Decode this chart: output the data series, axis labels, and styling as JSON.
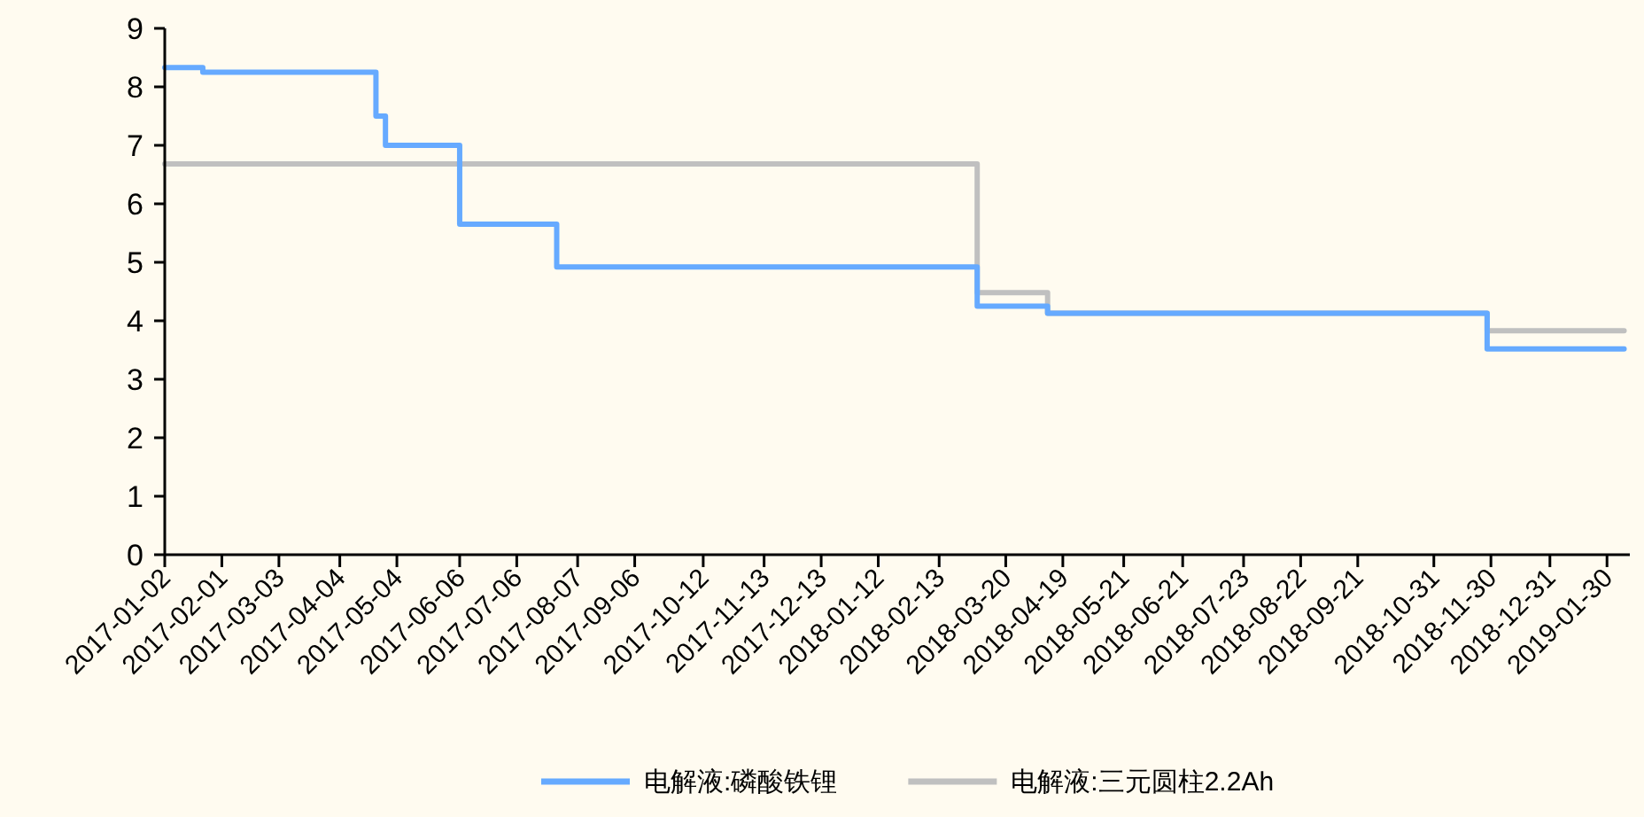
{
  "chart_data": {
    "type": "step",
    "ylim": [
      0,
      9
    ],
    "yticks": [
      0,
      1,
      2,
      3,
      4,
      5,
      6,
      7,
      8,
      9
    ],
    "xlim": [
      "2017-01-02",
      "2019-02-11"
    ],
    "xticks": [
      "2017-01-02",
      "2017-02-01",
      "2017-03-03",
      "2017-04-04",
      "2017-05-04",
      "2017-06-06",
      "2017-07-06",
      "2017-08-07",
      "2017-09-06",
      "2017-10-12",
      "2017-11-13",
      "2017-12-13",
      "2018-01-12",
      "2018-02-13",
      "2018-03-20",
      "2018-04-19",
      "2018-05-21",
      "2018-06-21",
      "2018-07-23",
      "2018-08-22",
      "2018-09-21",
      "2018-10-31",
      "2018-11-30",
      "2018-12-31",
      "2019-01-30"
    ],
    "grid": false,
    "legend": "bottom",
    "marker": "none",
    "line_style": "solid",
    "series": [
      {
        "name": "电解液:三元圆柱2.2Ah",
        "color": "#c0c0c0",
        "x": [
          "2017-01-02",
          "2018-03-05",
          "2018-04-11",
          "2018-11-28",
          "2019-02-08"
        ],
        "values": [
          6.68,
          4.48,
          4.13,
          3.83,
          3.83
        ]
      },
      {
        "name": "电解液:磷酸铁锂",
        "color": "#66aaff",
        "x": [
          "2017-01-02",
          "2017-01-22",
          "2017-04-23",
          "2017-04-26",
          "2017-04-28",
          "2017-06-06",
          "2017-07-27",
          "2018-03-05",
          "2018-04-11",
          "2018-11-28",
          "2019-02-08"
        ],
        "values": [
          8.33,
          8.25,
          7.5,
          7.5,
          7.0,
          5.65,
          4.92,
          4.25,
          4.13,
          3.52,
          3.52
        ]
      }
    ]
  }
}
